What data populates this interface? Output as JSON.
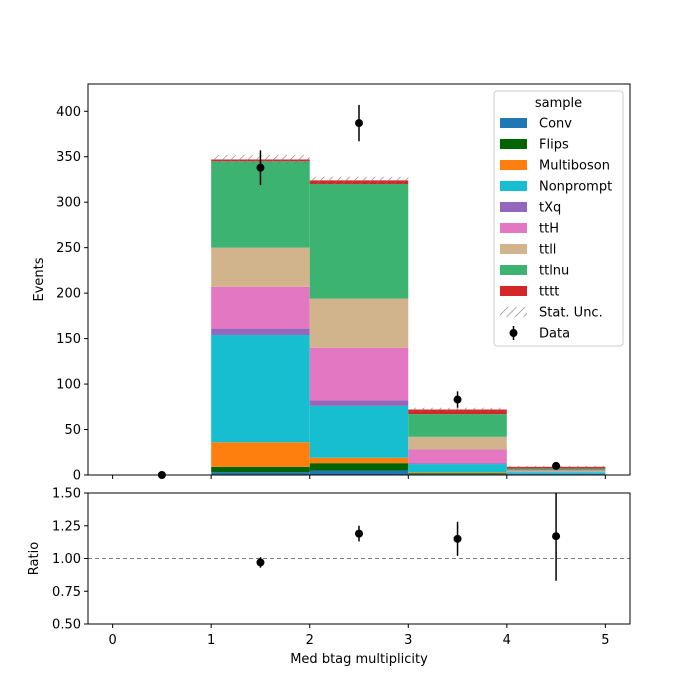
{
  "chart_data": [
    {
      "type": "bar",
      "stacked": true,
      "x_edges": [
        0,
        1,
        2,
        3,
        4,
        5
      ],
      "xlim": [
        -0.25,
        5.25
      ],
      "ylim": [
        0,
        430
      ],
      "ylabel": "Events",
      "xticks": [
        "0",
        "1",
        "2",
        "3",
        "4",
        "5"
      ],
      "yticks": [
        "0",
        "50",
        "100",
        "150",
        "200",
        "250",
        "300",
        "350",
        "400"
      ],
      "legend_title": "sample",
      "legend_position": "top-right",
      "stat_unc_label": "Stat. Unc.",
      "data_label": "Data",
      "series": [
        {
          "name": "Conv",
          "color": "#1f77b4",
          "values": [
            0,
            3,
            5,
            1,
            1
          ]
        },
        {
          "name": "Flips",
          "color": "#006400",
          "values": [
            0,
            6,
            8,
            1,
            0
          ]
        },
        {
          "name": "Multiboson",
          "color": "#ff7f0e",
          "values": [
            0,
            27,
            6,
            1,
            0
          ]
        },
        {
          "name": "Nonprompt",
          "color": "#17becf",
          "values": [
            0,
            118,
            57,
            9,
            2
          ]
        },
        {
          "name": "tXq",
          "color": "#9467bd",
          "values": [
            0,
            7,
            6,
            1,
            0
          ]
        },
        {
          "name": "ttH",
          "color": "#e377c2",
          "values": [
            0,
            46,
            58,
            15,
            1
          ]
        },
        {
          "name": "ttll",
          "color": "#d2b48c",
          "values": [
            0,
            43,
            54,
            14,
            1
          ]
        },
        {
          "name": "ttlnu",
          "color": "#3cb371",
          "values": [
            0,
            95,
            126,
            25,
            2
          ]
        },
        {
          "name": "tttt",
          "color": "#d62728",
          "values": [
            0,
            2,
            4,
            5,
            2
          ]
        }
      ],
      "stat_unc": [
        0,
        5,
        4,
        2,
        1
      ],
      "data_points": [
        {
          "x": 0.5,
          "y": 0,
          "err": 0
        },
        {
          "x": 1.5,
          "y": 338,
          "err": 19
        },
        {
          "x": 2.5,
          "y": 387,
          "err": 20
        },
        {
          "x": 3.5,
          "y": 83,
          "err": 9
        },
        {
          "x": 4.5,
          "y": 10,
          "err": 3
        }
      ]
    },
    {
      "type": "scatter",
      "xlabel": "Med btag multiplicity",
      "ylabel": "Ratio",
      "xlim": [
        -0.25,
        5.25
      ],
      "ylim": [
        0.5,
        1.5
      ],
      "xticks": [
        "0",
        "1",
        "2",
        "3",
        "4",
        "5"
      ],
      "yticks": [
        "0.50",
        "0.75",
        "1.00",
        "1.25",
        "1.50"
      ],
      "reference_line": 1.0,
      "points": [
        {
          "x": 1.5,
          "y": 0.97,
          "err": 0.04
        },
        {
          "x": 2.5,
          "y": 1.19,
          "err": 0.06
        },
        {
          "x": 3.5,
          "y": 1.15,
          "err": 0.13
        },
        {
          "x": 4.5,
          "y": 1.17,
          "err": 0.34
        }
      ]
    }
  ]
}
